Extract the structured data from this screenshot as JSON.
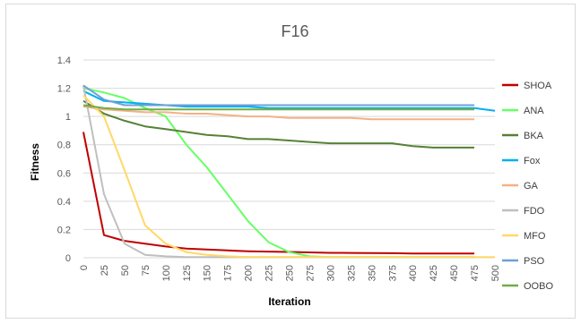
{
  "chart_data": {
    "type": "line",
    "title": "F16",
    "xlabel": "Iteration",
    "ylabel": "Fitness",
    "ylim": [
      0,
      1.4
    ],
    "yticks": [
      "0",
      "0.2",
      "0.4",
      "0.6",
      "0.8",
      "1",
      "1.2",
      "1.4"
    ],
    "categories": [
      "0",
      "25",
      "50",
      "75",
      "100",
      "125",
      "150",
      "175",
      "200",
      "225",
      "250",
      "275",
      "300",
      "325",
      "350",
      "375",
      "400",
      "425",
      "450",
      "475",
      "500"
    ],
    "grid": "horizontal",
    "legend": "right",
    "series": [
      {
        "name": "SHOA",
        "color": "#c00000",
        "values": [
          0.89,
          0.16,
          0.12,
          0.1,
          0.08,
          0.065,
          0.058,
          0.052,
          0.046,
          0.044,
          0.041,
          0.038,
          0.035,
          0.034,
          0.033,
          0.032,
          0.03,
          0.03,
          0.03,
          0.03,
          null
        ]
      },
      {
        "name": "ANA",
        "color": "#66ff66",
        "values": [
          1.2,
          1.17,
          1.13,
          1.06,
          1.0,
          0.8,
          0.64,
          0.45,
          0.26,
          0.11,
          0.04,
          0.01,
          0.005,
          0.005,
          0.005,
          0.005,
          0.005,
          0.005,
          0.005,
          0.005,
          null
        ]
      },
      {
        "name": "BKA",
        "color": "#548235",
        "values": [
          1.11,
          1.02,
          0.97,
          0.93,
          0.91,
          0.89,
          0.87,
          0.86,
          0.84,
          0.84,
          0.83,
          0.82,
          0.81,
          0.81,
          0.81,
          0.81,
          0.79,
          0.78,
          0.78,
          0.78,
          null
        ]
      },
      {
        "name": "Fox",
        "color": "#00b0f0",
        "values": [
          1.18,
          1.11,
          1.1,
          1.09,
          1.08,
          1.07,
          1.07,
          1.07,
          1.07,
          1.06,
          1.06,
          1.06,
          1.06,
          1.06,
          1.06,
          1.06,
          1.06,
          1.06,
          1.06,
          1.06,
          1.04
        ]
      },
      {
        "name": "GA",
        "color": "#f4b183",
        "values": [
          1.07,
          1.05,
          1.04,
          1.03,
          1.03,
          1.02,
          1.02,
          1.01,
          1.0,
          1.0,
          0.99,
          0.99,
          0.99,
          0.99,
          0.98,
          0.98,
          0.98,
          0.98,
          0.98,
          0.98,
          null
        ]
      },
      {
        "name": "FDO",
        "color": "#bfbfbf",
        "values": [
          1.22,
          0.45,
          0.1,
          0.02,
          0.01,
          0.005,
          0.005,
          0.005,
          0.005,
          0.005,
          0.005,
          0.005,
          0.005,
          0.005,
          0.005,
          0.005,
          0.005,
          0.005,
          0.005,
          0.005,
          null
        ]
      },
      {
        "name": "MFO",
        "color": "#ffd966",
        "values": [
          1.15,
          1.0,
          0.62,
          0.23,
          0.1,
          0.04,
          0.02,
          0.01,
          0.005,
          0.005,
          0.005,
          0.005,
          0.005,
          0.005,
          0.005,
          0.005,
          0.005,
          0.005,
          0.005,
          0.005,
          0.005
        ]
      },
      {
        "name": "PSO",
        "color": "#6f9fd8",
        "values": [
          1.22,
          1.12,
          1.08,
          1.08,
          1.08,
          1.08,
          1.08,
          1.08,
          1.08,
          1.08,
          1.08,
          1.08,
          1.08,
          1.08,
          1.08,
          1.08,
          1.08,
          1.08,
          1.08,
          1.08,
          null
        ]
      },
      {
        "name": "OOBO",
        "color": "#70ad47",
        "values": [
          1.08,
          1.06,
          1.05,
          1.05,
          1.05,
          1.05,
          1.05,
          1.05,
          1.05,
          1.05,
          1.05,
          1.05,
          1.05,
          1.05,
          1.05,
          1.05,
          1.05,
          1.05,
          1.05,
          1.05,
          null
        ]
      }
    ]
  }
}
